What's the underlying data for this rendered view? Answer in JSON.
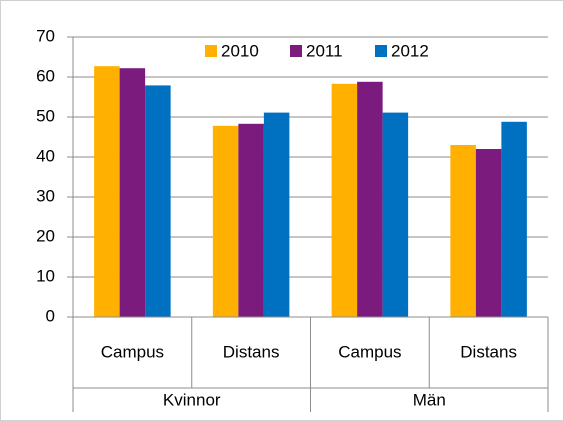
{
  "chart_data": {
    "type": "bar",
    "categories": [
      "Campus",
      "Distans",
      "Campus",
      "Distans"
    ],
    "category_groups": [
      "Kvinnor",
      "Män"
    ],
    "series": [
      {
        "name": "2010",
        "color": "#ffb000",
        "values": [
          62.7,
          47.8,
          58.3,
          43
        ]
      },
      {
        "name": "2011",
        "color": "#7b1b7e",
        "values": [
          62.2,
          48.3,
          58.8,
          42
        ]
      },
      {
        "name": "2012",
        "color": "#0070c0",
        "values": [
          57.9,
          51.1,
          51.1,
          48.8
        ]
      }
    ],
    "ylim": [
      0,
      70
    ],
    "yticks": [
      0,
      10,
      20,
      30,
      40,
      50,
      60,
      70
    ],
    "grid": true,
    "legend": "top"
  }
}
